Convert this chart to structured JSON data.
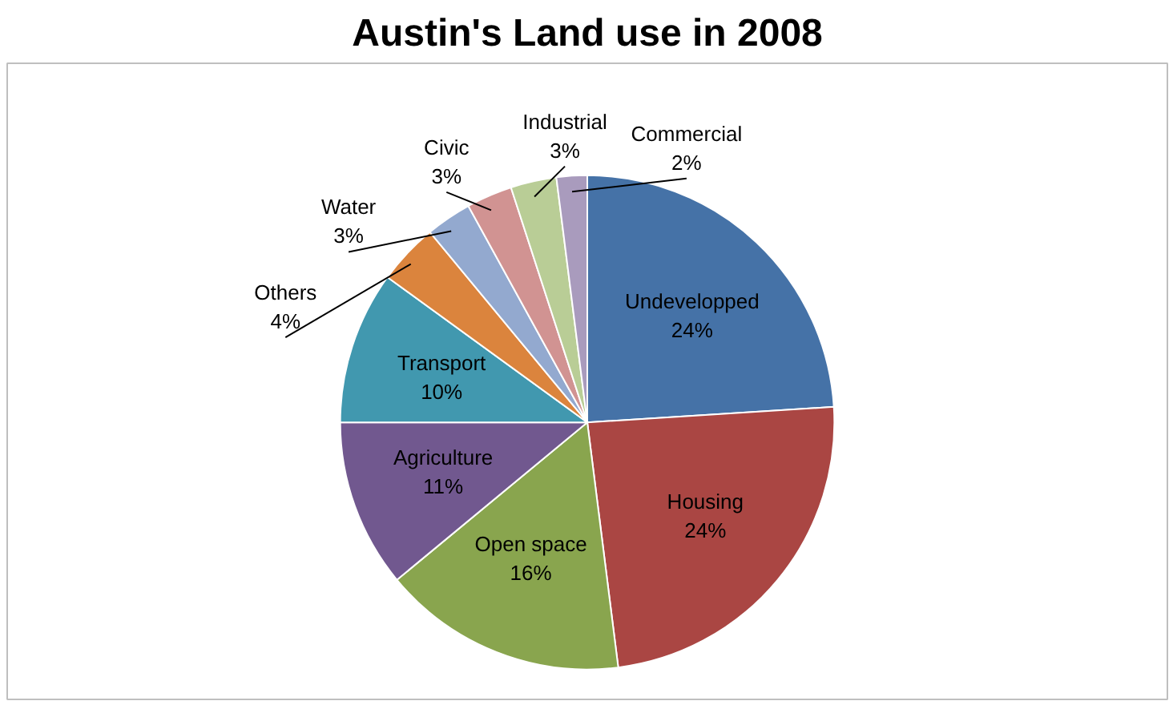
{
  "chart_data": {
    "type": "pie",
    "title": "Austin's Land use in 2008",
    "categories": [
      "Undevelopped",
      "Housing",
      "Open space",
      "Agriculture",
      "Transport",
      "Others",
      "Water",
      "Civic",
      "Industrial",
      "Commercial"
    ],
    "values": [
      24,
      24,
      16,
      11,
      10,
      4,
      3,
      3,
      3,
      2
    ],
    "value_labels": [
      "24%",
      "24%",
      "16%",
      "11%",
      "10%",
      "4%",
      "3%",
      "3%",
      "3%",
      "2%"
    ],
    "colors": [
      "#4572a7",
      "#aa4643",
      "#89a54e",
      "#71588f",
      "#4198af",
      "#db843d",
      "#93a9cf",
      "#d19392",
      "#b9cd96",
      "#a99bbd"
    ],
    "data_labels": true
  }
}
